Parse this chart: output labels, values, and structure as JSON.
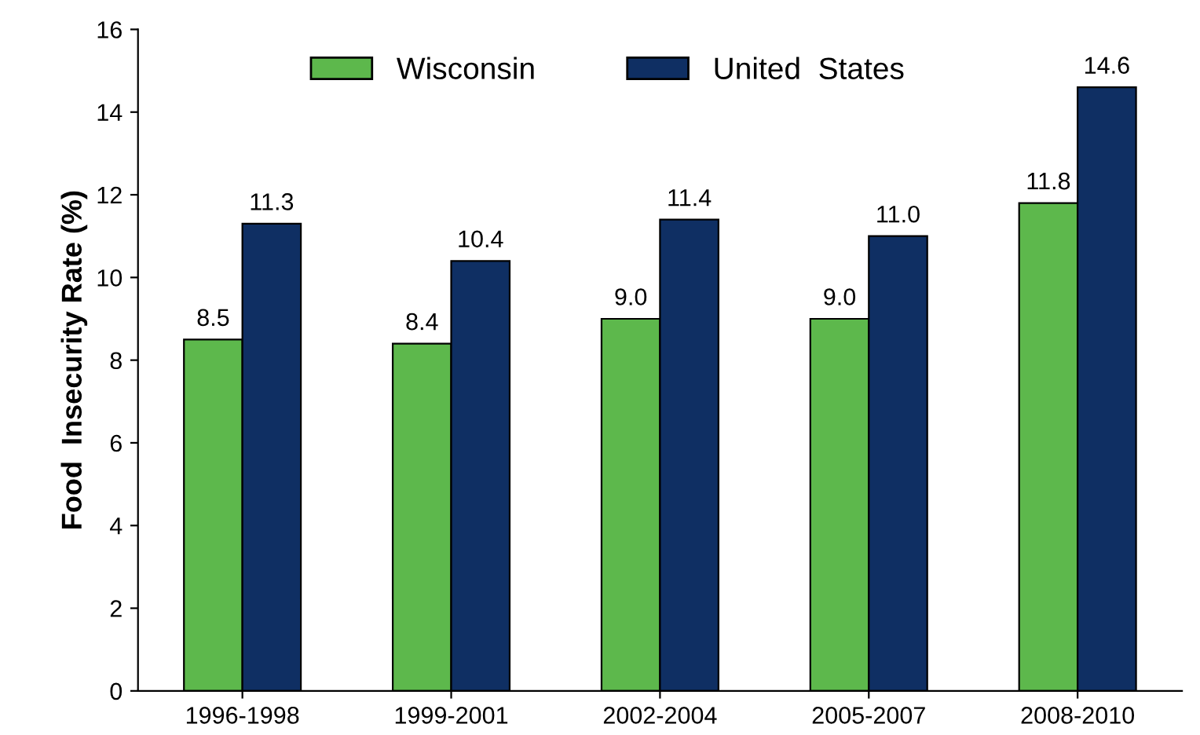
{
  "chart_data": {
    "type": "bar",
    "ylabel": "Food  Insecurity Rate (%)",
    "categories": [
      "1996-1998",
      "1999-2001",
      "2002-2004",
      "2005-2007",
      "2008-2010"
    ],
    "series": [
      {
        "name": "Wisconsin",
        "color": "#5db84c",
        "values": [
          8.5,
          8.4,
          9.0,
          9.0,
          11.8
        ],
        "value_labels": [
          "8.5",
          "8.4",
          "9.0",
          "9.0",
          "11.8"
        ]
      },
      {
        "name": "United  States",
        "color": "#0f2f63",
        "values": [
          11.3,
          10.4,
          11.4,
          11.0,
          14.6
        ],
        "value_labels": [
          "11.3",
          "10.4",
          "11.4",
          "11.0",
          "14.6"
        ]
      }
    ],
    "ylim": [
      0,
      16
    ],
    "yticks": [
      0,
      2,
      4,
      6,
      8,
      10,
      12,
      14,
      16
    ],
    "legend": "top",
    "grid": false
  }
}
